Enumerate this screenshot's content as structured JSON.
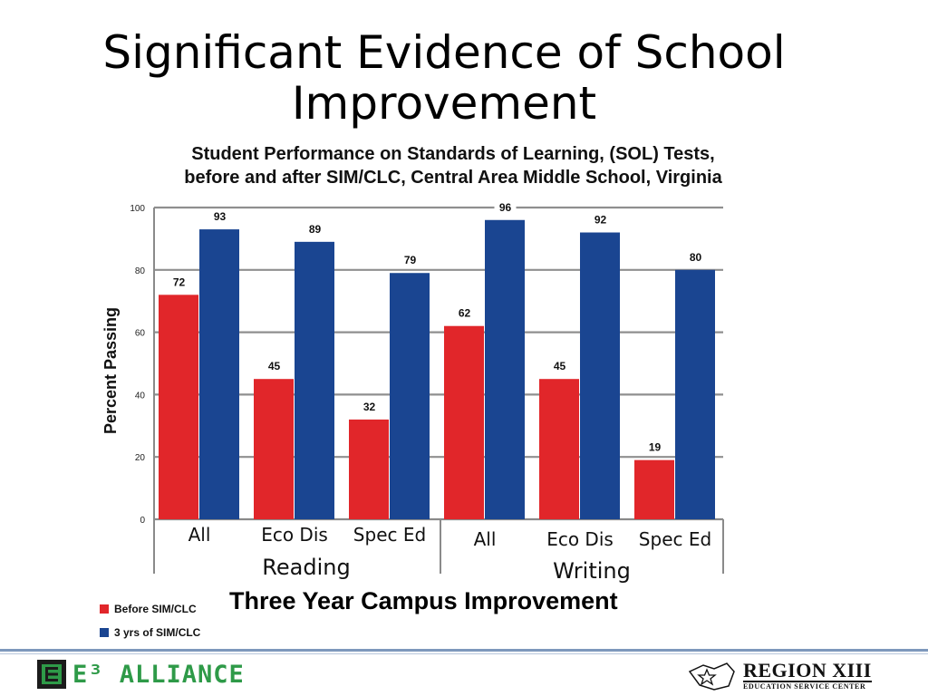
{
  "slide": {
    "title_line1": "Significant Evidence of School",
    "title_line2": "Improvement"
  },
  "chart_data": {
    "type": "bar",
    "title_line1": "Student Performance on Standards of Learning, (SOL) Tests,",
    "title_line2": "before and after SIM/CLC, Central Area Middle School, Virginia",
    "ylabel": "Percent Passing",
    "xlabel": "Three Year  Campus Improvement",
    "ylim": [
      0,
      100
    ],
    "yticks": [
      0,
      20,
      40,
      60,
      80,
      100
    ],
    "grid": true,
    "groups": [
      "Reading",
      "Writing"
    ],
    "categories": [
      "All",
      "Eco Dis",
      "Spec Ed",
      "All",
      "Eco Dis",
      "Spec Ed"
    ],
    "legend_position": "bottom-left",
    "series": [
      {
        "name": "Before SIM/CLC",
        "color": "#e1262a",
        "values": [
          72,
          45,
          32,
          62,
          45,
          19
        ]
      },
      {
        "name": "3 yrs of SIM/CLC",
        "color": "#1a4591",
        "values": [
          93,
          89,
          79,
          96,
          92,
          80
        ]
      }
    ]
  },
  "footer": {
    "left_logo_text": "E³ ALLIANCE",
    "left_logo_color": "#2e9a48",
    "right_logo_main": "REGION XIII",
    "right_logo_sub": "EDUCATION SERVICE CENTER"
  }
}
